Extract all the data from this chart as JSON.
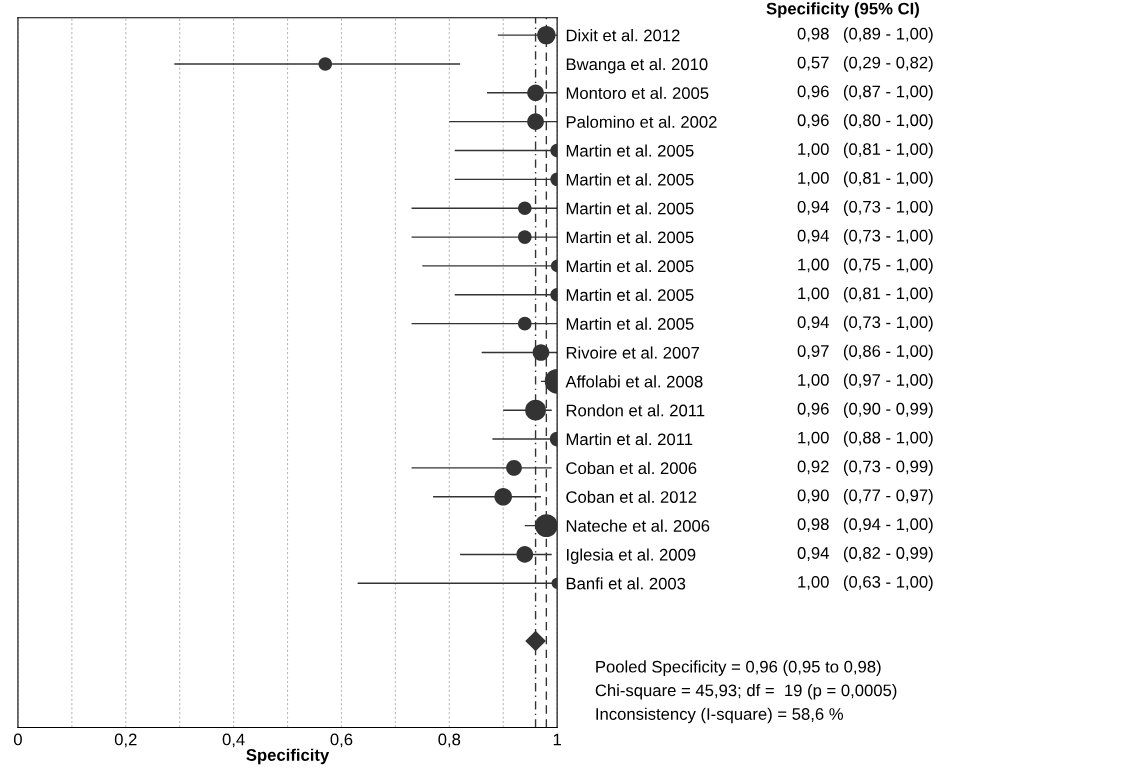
{
  "chart_data": {
    "type": "bubble",
    "orientation": "horizontal",
    "xlabel": "Specificity",
    "categories": [
      "Dixit et al. 2012",
      "Bwanga et al. 2010",
      "Montoro et al. 2005",
      "Palomino et al. 2002",
      "Martin et al. 2005",
      "Martin et al. 2005",
      "Martin et al. 2005",
      "Martin et al. 2005",
      "Martin et al. 2005",
      "Martin et al. 2005",
      "Martin et al. 2005",
      "Rivoire et al. 2007",
      "Affolabi et al. 2008",
      "Rondon et al. 2011",
      "Martin et al. 2011",
      "Coban et al. 2006",
      "Coban et al. 2012",
      "Nateche et al. 2006",
      "Iglesia et al. 2009",
      "Banfi et al. 2003",
      null,
      null
    ],
    "series": [
      {
        "color": "#333333",
        "marker": "circle",
        "values": [
          0.98,
          0.57,
          0.96,
          0.96,
          1.0,
          1.0,
          0.94,
          0.94,
          1.0,
          1.0,
          0.94,
          0.97,
          1.0,
          0.96,
          1.0,
          0.92,
          0.9,
          0.98,
          0.94,
          1.0,
          null,
          null
        ],
        "errors": [
          [
            0.89,
            1.0
          ],
          [
            0.29,
            0.82
          ],
          [
            0.87,
            1.0
          ],
          [
            0.8,
            1.0
          ],
          [
            0.81,
            1.0
          ],
          [
            0.81,
            1.0
          ],
          [
            0.73,
            1.0
          ],
          [
            0.73,
            1.0
          ],
          [
            0.75,
            1.0
          ],
          [
            0.81,
            1.0
          ],
          [
            0.73,
            1.0
          ],
          [
            0.86,
            1.0
          ],
          [
            0.97,
            1.0
          ],
          [
            0.9,
            0.99
          ],
          [
            0.88,
            1.0
          ],
          [
            0.73,
            0.99
          ],
          [
            0.77,
            0.97
          ],
          [
            0.94,
            1.0
          ],
          [
            0.82,
            0.99
          ],
          [
            0.63,
            1.0
          ],
          null,
          null
        ],
        "sizes": [
          0.55,
          0.3,
          0.45,
          0.45,
          0.3,
          0.3,
          0.3,
          0.3,
          0.25,
          0.3,
          0.3,
          0.45,
          1,
          0.7,
          0.35,
          0.4,
          0.5,
          0.85,
          0.45,
          0.2,
          null,
          null
        ],
        "value_labels": [
          "0,98 (0,89 - 1,00)",
          "0,57 (0,29 - 0,82)",
          "0,96 (0,87 - 1,00)",
          "0,96 (0,80 - 1,00)",
          "1,00 (0,81 - 1,00)",
          "1,00 (0,81 - 1,00)",
          "0,94 (0,73 - 1,00)",
          "0,94 (0,73 - 1,00)",
          "1,00 (0,75 - 1,00)",
          "1,00 (0,81 - 1,00)",
          "0,94 (0,73 - 1,00)",
          "0,97 (0,86 - 1,00)",
          "1,00 (0,97 - 1,00)",
          "0,96 (0,90 - 0,99)",
          "1,00 (0,88 - 1,00)",
          "0,92 (0,73 - 0,99)",
          "0,90 (0,77 - 0,97)",
          "0,98 (0,94 - 1,00)",
          "0,94 (0,82 - 0,99)",
          "1,00 (0,63 - 1,00)",
          null,
          null
        ]
      },
      {
        "type": "scatter",
        "color": "#333333",
        "marker": "diamond",
        "values": [
          null,
          null,
          null,
          null,
          null,
          null,
          null,
          null,
          null,
          null,
          null,
          null,
          null,
          null,
          null,
          null,
          null,
          null,
          null,
          null,
          null,
          0.96
        ]
      }
    ],
    "xlim": [
      0,
      1
    ],
    "xticks": [
      0,
      {
        "value": 0.1,
        "label": null
      },
      {
        "value": 0.2,
        "label": "0,2"
      },
      {
        "value": 0.3,
        "label": null
      },
      {
        "value": 0.4,
        "label": "0,4"
      },
      {
        "value": 0.5,
        "label": null
      },
      {
        "value": 0.6,
        "label": "0,6"
      },
      {
        "value": 0.7,
        "label": null
      },
      {
        "value": 0.8,
        "label": "0,8"
      },
      {
        "value": 0.9,
        "label": null
      },
      1
    ],
    "grid": "x",
    "legend": false,
    "ref_lines": [
      {
        "axis": "x",
        "value": 0.96,
        "line_style": "dotted",
        "color": "#333333"
      },
      {
        "axis": "x",
        "value": 0.98,
        "line_style": "dashed",
        "color": "#333333"
      }
    ],
    "annotations": [
      "Specificity (95% CI)",
      "Pooled Specificity = 0,96 (0,95 to 0,98)",
      "Chi-square = 45,93; df =  19 (p = 0,0005)",
      "Inconsistency (I-square) = 58,6 %"
    ]
  }
}
